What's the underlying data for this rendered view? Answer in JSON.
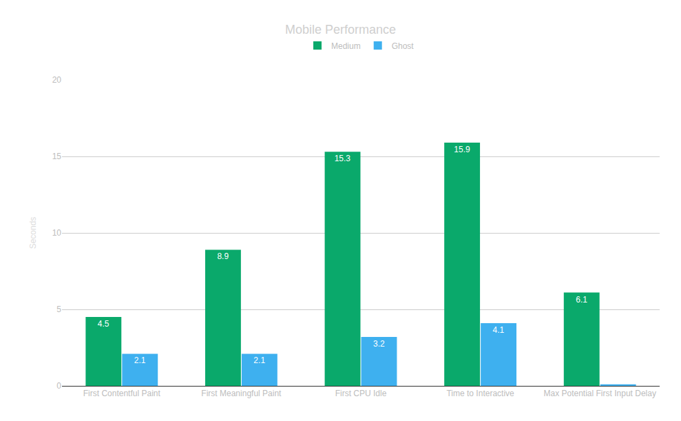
{
  "chart_data": {
    "type": "bar",
    "title": "Mobile Performance",
    "y_label": "Seconds",
    "categories": [
      "First Contentful Paint",
      "First Meaningful Paint",
      "First CPU Idle",
      "Time to Interactive",
      "Max Potential First Input Delay"
    ],
    "series": [
      {
        "name": "Medium",
        "color": "#0aa96b",
        "values": [
          4.5,
          8.9,
          15.3,
          15.9,
          6.1
        ]
      },
      {
        "name": "Ghost",
        "color": "#3eb0ef",
        "values": [
          2.1,
          2.1,
          3.2,
          4.1,
          0.1
        ],
        "value_labels": [
          "2.1",
          "2.1",
          "3.2",
          "4.1",
          null
        ]
      }
    ],
    "ylim": [
      0,
      20
    ],
    "yticks": [
      0,
      5,
      10,
      15,
      20
    ],
    "grid": true,
    "legend": "top",
    "data_labels": true
  }
}
